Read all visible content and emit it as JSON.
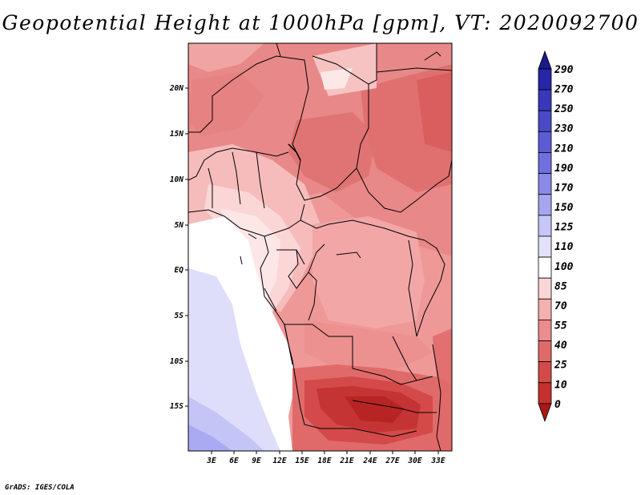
{
  "title": "Geopotential Height at 1000hPa [gpm], VT: 2020092700",
  "credit": "GrADS: IGES/COLA",
  "map": {
    "lon_ticks": [
      "3E",
      "6E",
      "9E",
      "12E",
      "15E",
      "18E",
      "21E",
      "24E",
      "27E",
      "30E",
      "33E"
    ],
    "lat_ticks": [
      "20N",
      "15N",
      "10N",
      "5N",
      "EQ",
      "5S",
      "10S",
      "15S"
    ]
  },
  "colorbar": {
    "levels": [
      "290",
      "270",
      "250",
      "230",
      "210",
      "190",
      "170",
      "150",
      "125",
      "110",
      "100",
      "85",
      "70",
      "55",
      "40",
      "25",
      "10",
      "0"
    ],
    "colors": [
      "#1a1a8c",
      "#2626a6",
      "#3838b8",
      "#4a4ac6",
      "#5c5cd2",
      "#7070dc",
      "#8a8ae6",
      "#a6a6f0",
      "#c6c6f7",
      "#e2e2fb",
      "#ffffff",
      "#fbd6d6",
      "#f5b0b0",
      "#ec8c8c",
      "#e06a6a",
      "#d44a4a",
      "#c43030",
      "#a81818"
    ]
  }
}
